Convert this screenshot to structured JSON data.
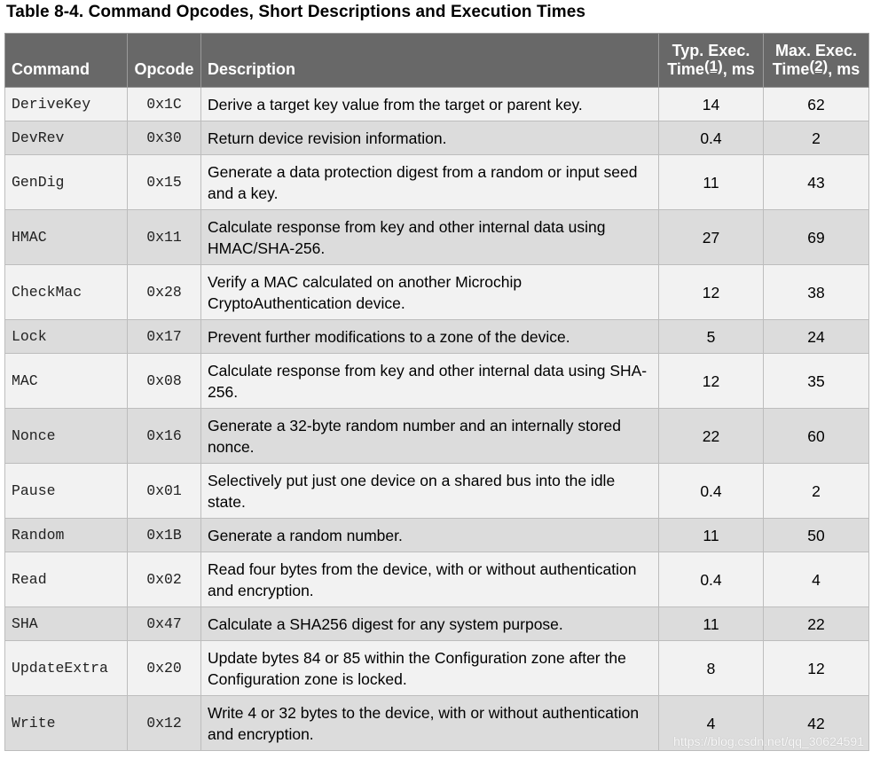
{
  "title": "Table 8-4.  Command Opcodes, Short Descriptions and Execution Times",
  "headers": {
    "command": "Command",
    "opcode": "Opcode",
    "description": "Description",
    "typ_line1": "Typ. Exec.",
    "typ_line2_pre": "Time",
    "typ_note": "(1)",
    "typ_line2_post": ", ms",
    "max_line1": "Max. Exec.",
    "max_line2_pre": "Time",
    "max_note": "(2)",
    "max_line2_post": ", ms"
  },
  "rows": [
    {
      "command": "DeriveKey",
      "opcode": "0x1C",
      "description": "Derive a target key value from the target or parent key.",
      "typ": "14",
      "max": "62"
    },
    {
      "command": "DevRev",
      "opcode": "0x30",
      "description": "Return device revision information.",
      "typ": "0.4",
      "max": "2"
    },
    {
      "command": "GenDig",
      "opcode": "0x15",
      "description": "Generate a data protection digest from a random or input seed and a key.",
      "typ": "11",
      "max": "43"
    },
    {
      "command": "HMAC",
      "opcode": "0x11",
      "description": "Calculate response from key and other internal data using HMAC/SHA-256.",
      "typ": "27",
      "max": "69"
    },
    {
      "command": "CheckMac",
      "opcode": "0x28",
      "description": "Verify a MAC calculated on another Microchip CryptoAuthentication device.",
      "typ": "12",
      "max": "38"
    },
    {
      "command": "Lock",
      "opcode": "0x17",
      "description": "Prevent further modifications to a zone of the device.",
      "typ": "5",
      "max": "24"
    },
    {
      "command": "MAC",
      "opcode": "0x08",
      "description": "Calculate response from key and other internal data using SHA-256.",
      "typ": "12",
      "max": "35"
    },
    {
      "command": "Nonce",
      "opcode": "0x16",
      "description": "Generate a 32-byte random number and an internally stored nonce.",
      "typ": "22",
      "max": "60"
    },
    {
      "command": "Pause",
      "opcode": "0x01",
      "description": "Selectively put just one device on a shared bus into the idle state.",
      "typ": "0.4",
      "max": "2"
    },
    {
      "command": "Random",
      "opcode": "0x1B",
      "description": "Generate a random number.",
      "typ": "11",
      "max": "50"
    },
    {
      "command": "Read",
      "opcode": "0x02",
      "description": "Read four bytes from the device, with or without authentication and encryption.",
      "typ": "0.4",
      "max": "4"
    },
    {
      "command": "SHA",
      "opcode": "0x47",
      "description": "Calculate a SHA256 digest for any system purpose.",
      "typ": "11",
      "max": "22"
    },
    {
      "command": "UpdateExtra",
      "opcode": "0x20",
      "description": "Update bytes 84 or 85 within the Configuration zone after the Configuration zone is locked.",
      "typ": "8",
      "max": "12"
    },
    {
      "command": "Write",
      "opcode": "0x12",
      "description": "Write 4 or 32 bytes to the device, with or without authentication and encryption.",
      "typ": "4",
      "max": "42"
    }
  ],
  "watermark": "https://blog.csdn.net/qq_30624591",
  "colors": {
    "header_bg": "#686868",
    "row_light": "#f2f2f2",
    "row_dark": "#dcdcdc",
    "border": "#bdbdbd"
  }
}
